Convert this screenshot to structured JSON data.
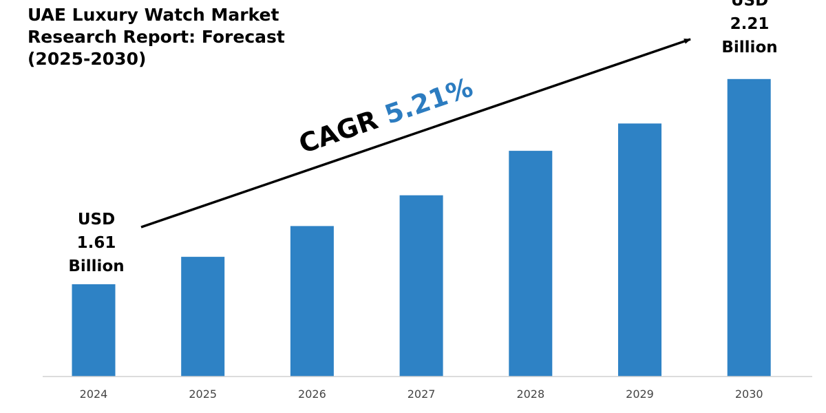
{
  "title": "UAE Luxury Watch Market Research Report: Forecast (2025-2030)",
  "colors": {
    "bar": "#2E82C5",
    "cagr_value": "#2C7CC0",
    "text": "#000000",
    "axis_line": "#D0D0D0",
    "tick_label": "#444444"
  },
  "annotation": {
    "cagr_label": "CAGR",
    "cagr_value": "5.21%",
    "arrow_icon": "trend-arrow-icon"
  },
  "start_value": {
    "currency": "USD",
    "amount": "1.61",
    "unit": "Billion"
  },
  "end_value": {
    "currency": "USD",
    "amount": "2.21",
    "unit": "Billion"
  },
  "chart_data": {
    "type": "bar",
    "title": "UAE Luxury Watch Market Research Report: Forecast (2025-2030)",
    "xlabel": "",
    "ylabel": "",
    "categories": [
      "2024",
      "2025",
      "2026",
      "2027",
      "2028",
      "2029",
      "2030"
    ],
    "values": [
      1.61,
      1.69,
      1.78,
      1.87,
      2.0,
      2.08,
      2.21
    ],
    "ylim": [
      1.34,
      2.27
    ],
    "grid": false,
    "legend": "none",
    "unit": "USD Billion"
  }
}
